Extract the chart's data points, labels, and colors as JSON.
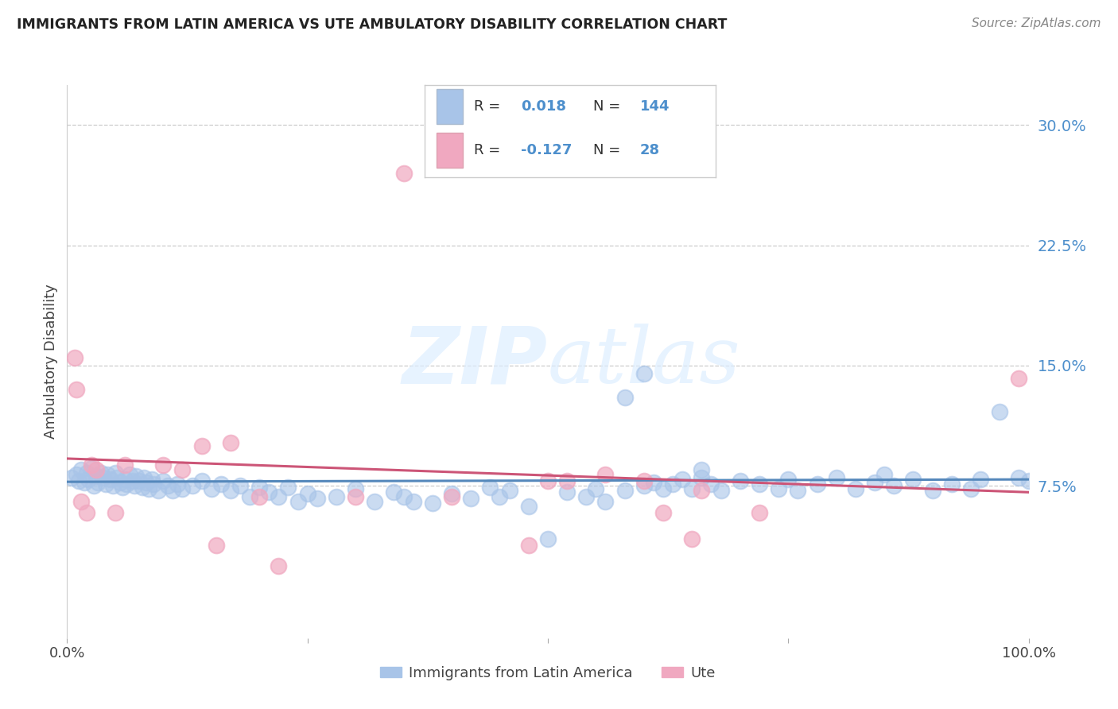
{
  "title": "IMMIGRANTS FROM LATIN AMERICA VS UTE AMBULATORY DISABILITY CORRELATION CHART",
  "source": "Source: ZipAtlas.com",
  "ylabel": "Ambulatory Disability",
  "ytick_labels": [
    "7.5%",
    "15.0%",
    "22.5%",
    "30.0%"
  ],
  "ytick_values": [
    0.075,
    0.15,
    0.225,
    0.3
  ],
  "xlim": [
    0.0,
    1.0
  ],
  "ylim": [
    -0.02,
    0.325
  ],
  "legend_label_1": "Immigrants from Latin America",
  "legend_label_2": "Ute",
  "R1": "0.018",
  "N1": "144",
  "R2": "-0.127",
  "N2": "28",
  "color_blue": "#a8c4e8",
  "color_pink": "#f0a8c0",
  "color_blue_text": "#4d8fcc",
  "line_blue": "#5588bb",
  "line_pink": "#cc5577",
  "watermark_zip": "ZIP",
  "watermark_atlas": "atlas",
  "grid_color": "#cccccc",
  "background_color": "#ffffff",
  "blue_scatter_x": [
    0.005,
    0.01,
    0.012,
    0.015,
    0.018,
    0.02,
    0.022,
    0.025,
    0.028,
    0.03,
    0.032,
    0.035,
    0.038,
    0.04,
    0.042,
    0.045,
    0.048,
    0.05,
    0.052,
    0.055,
    0.058,
    0.06,
    0.062,
    0.065,
    0.068,
    0.07,
    0.072,
    0.075,
    0.078,
    0.08,
    0.082,
    0.085,
    0.088,
    0.09,
    0.095,
    0.1,
    0.105,
    0.11,
    0.115,
    0.12,
    0.13,
    0.14,
    0.15,
    0.16,
    0.17,
    0.18,
    0.19,
    0.2,
    0.21,
    0.22,
    0.23,
    0.24,
    0.25,
    0.26,
    0.28,
    0.3,
    0.32,
    0.34,
    0.35,
    0.36,
    0.38,
    0.4,
    0.42,
    0.44,
    0.45,
    0.46,
    0.48,
    0.5,
    0.52,
    0.54,
    0.55,
    0.56,
    0.58,
    0.6,
    0.61,
    0.62,
    0.63,
    0.64,
    0.65,
    0.66,
    0.67,
    0.68,
    0.7,
    0.72,
    0.74,
    0.75,
    0.76,
    0.78,
    0.8,
    0.82,
    0.84,
    0.85,
    0.86,
    0.88,
    0.9,
    0.92,
    0.94,
    0.95,
    0.97,
    0.99,
    1.0,
    0.58,
    0.6,
    0.66
  ],
  "blue_scatter_y": [
    0.08,
    0.082,
    0.078,
    0.085,
    0.077,
    0.083,
    0.079,
    0.086,
    0.075,
    0.081,
    0.077,
    0.083,
    0.08,
    0.076,
    0.082,
    0.079,
    0.075,
    0.083,
    0.08,
    0.077,
    0.074,
    0.079,
    0.076,
    0.082,
    0.078,
    0.075,
    0.081,
    0.078,
    0.074,
    0.08,
    0.077,
    0.073,
    0.079,
    0.076,
    0.072,
    0.078,
    0.075,
    0.072,
    0.076,
    0.073,
    0.075,
    0.078,
    0.073,
    0.076,
    0.072,
    0.075,
    0.068,
    0.074,
    0.071,
    0.068,
    0.074,
    0.065,
    0.07,
    0.067,
    0.068,
    0.073,
    0.065,
    0.071,
    0.068,
    0.065,
    0.064,
    0.07,
    0.067,
    0.074,
    0.068,
    0.072,
    0.062,
    0.042,
    0.071,
    0.068,
    0.073,
    0.065,
    0.072,
    0.075,
    0.077,
    0.073,
    0.076,
    0.079,
    0.073,
    0.08,
    0.076,
    0.072,
    0.078,
    0.076,
    0.073,
    0.079,
    0.072,
    0.076,
    0.08,
    0.073,
    0.077,
    0.082,
    0.075,
    0.079,
    0.072,
    0.076,
    0.073,
    0.079,
    0.121,
    0.08,
    0.078,
    0.13,
    0.145,
    0.085
  ],
  "pink_scatter_x": [
    0.008,
    0.01,
    0.015,
    0.02,
    0.025,
    0.03,
    0.05,
    0.06,
    0.1,
    0.12,
    0.14,
    0.155,
    0.17,
    0.2,
    0.22,
    0.3,
    0.35,
    0.4,
    0.48,
    0.5,
    0.52,
    0.56,
    0.6,
    0.62,
    0.65,
    0.66,
    0.72,
    0.99
  ],
  "pink_scatter_y": [
    0.155,
    0.135,
    0.065,
    0.058,
    0.088,
    0.085,
    0.058,
    0.088,
    0.088,
    0.085,
    0.1,
    0.038,
    0.102,
    0.068,
    0.025,
    0.068,
    0.27,
    0.068,
    0.038,
    0.078,
    0.078,
    0.082,
    0.078,
    0.058,
    0.042,
    0.072,
    0.058,
    0.142
  ],
  "blue_line_x": [
    0.0,
    1.0
  ],
  "blue_line_y": [
    0.0775,
    0.079
  ],
  "pink_line_x": [
    0.0,
    1.0
  ],
  "pink_line_y": [
    0.092,
    0.071
  ]
}
